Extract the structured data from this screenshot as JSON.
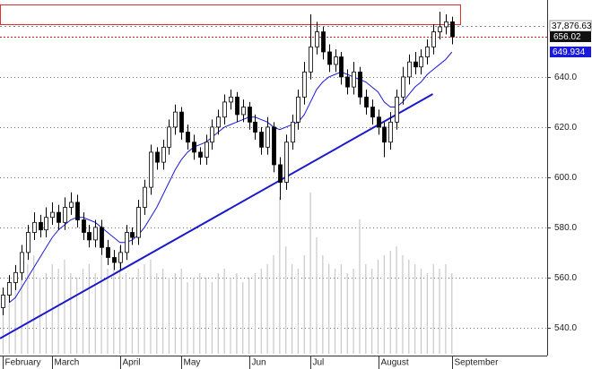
{
  "chart_data": {
    "type": "candlestick",
    "open": [
      548,
      553,
      558,
      562,
      570,
      578,
      582,
      579,
      584,
      586,
      582,
      588,
      590,
      583,
      578,
      575,
      580,
      572,
      568,
      566,
      570,
      578,
      576,
      588,
      596,
      610,
      606,
      612,
      620,
      626,
      618,
      614,
      610,
      608,
      614,
      620,
      624,
      630,
      632,
      625,
      628,
      622,
      618,
      612,
      620,
      605,
      598,
      614,
      622,
      632,
      642,
      652,
      658,
      650,
      645,
      648,
      640,
      636,
      642,
      632,
      628,
      624,
      620,
      614,
      622,
      632,
      640,
      646,
      644,
      648,
      652,
      658,
      660,
      662
    ],
    "high": [
      556,
      561,
      565,
      573,
      581,
      586,
      585,
      588,
      590,
      589,
      592,
      594,
      593,
      586,
      581,
      583,
      583,
      575,
      571,
      573,
      581,
      580,
      591,
      599,
      613,
      612,
      615,
      623,
      629,
      628,
      621,
      617,
      612,
      617,
      623,
      627,
      633,
      635,
      634,
      631,
      630,
      625,
      620,
      624,
      622,
      608,
      617,
      625,
      635,
      646,
      665,
      662,
      660,
      653,
      651,
      650,
      643,
      646,
      644,
      635,
      631,
      627,
      622,
      626,
      635,
      644,
      649,
      650,
      651,
      655,
      661,
      666,
      665,
      664
    ],
    "low": [
      545,
      550,
      555,
      559,
      567,
      575,
      576,
      576,
      581,
      579,
      579,
      585,
      580,
      575,
      572,
      572,
      569,
      565,
      563,
      563,
      567,
      573,
      573,
      585,
      593,
      603,
      603,
      609,
      617,
      615,
      611,
      607,
      605,
      605,
      611,
      617,
      621,
      627,
      622,
      622,
      619,
      615,
      609,
      609,
      602,
      591,
      595,
      611,
      619,
      629,
      639,
      649,
      647,
      642,
      642,
      637,
      633,
      633,
      629,
      625,
      621,
      617,
      608,
      611,
      619,
      629,
      637,
      641,
      641,
      645,
      649,
      655,
      657,
      653
    ],
    "close": [
      553,
      558,
      562,
      570,
      578,
      582,
      579,
      584,
      586,
      582,
      588,
      590,
      583,
      578,
      575,
      580,
      572,
      568,
      566,
      570,
      578,
      576,
      588,
      596,
      610,
      606,
      612,
      620,
      626,
      618,
      614,
      610,
      608,
      614,
      620,
      624,
      630,
      632,
      625,
      628,
      622,
      618,
      612,
      620,
      605,
      598,
      614,
      622,
      632,
      642,
      652,
      658,
      650,
      645,
      648,
      640,
      636,
      642,
      632,
      628,
      624,
      620,
      614,
      622,
      632,
      640,
      646,
      644,
      648,
      652,
      658,
      660,
      662,
      656.02
    ],
    "moving_average": [
      null,
      550,
      552,
      556,
      560,
      564,
      568,
      572,
      576,
      579,
      581,
      583,
      584,
      584,
      583,
      582,
      580,
      578,
      576,
      574,
      574,
      575,
      577,
      580,
      584,
      588,
      593,
      598,
      603,
      607,
      610,
      612,
      613,
      614,
      616,
      618,
      620,
      621,
      622,
      623,
      624,
      624,
      623,
      622,
      620,
      619,
      620,
      621,
      622,
      625,
      630,
      635,
      638,
      640,
      641,
      642,
      641,
      640,
      639,
      638,
      636,
      634,
      630,
      628,
      628,
      630,
      633,
      636,
      638,
      641,
      643,
      645,
      647,
      649.934
    ],
    "volume": [
      70,
      85,
      90,
      95,
      100,
      110,
      85,
      90,
      100,
      95,
      105,
      90,
      85,
      95,
      100,
      90,
      110,
      95,
      100,
      120,
      90,
      85,
      95,
      100,
      105,
      90,
      95,
      85,
      90,
      95,
      80,
      85,
      90,
      85,
      80,
      90,
      95,
      85,
      90,
      80,
      85,
      90,
      95,
      100,
      110,
      175,
      120,
      100,
      95,
      110,
      180,
      130,
      110,
      100,
      95,
      100,
      90,
      95,
      150,
      100,
      95,
      105,
      110,
      115,
      120,
      110,
      105,
      100,
      95,
      90,
      100,
      95,
      100,
      90
    ],
    "volume_lim": [
      0,
      200
    ],
    "trendline": {
      "x": [
        -0.5,
        69.9
      ],
      "y": [
        535.7,
        633.2
      ]
    },
    "annotations": [
      "37,876.63"
    ],
    "xlim": [
      -0.5,
      88.5
    ],
    "xticks": [
      {
        "value": 0,
        "label": "February"
      },
      {
        "value": 8,
        "label": "March"
      },
      {
        "value": 19,
        "label": "April"
      },
      {
        "value": 29,
        "label": "May"
      },
      {
        "value": 40,
        "label": "Jun"
      },
      {
        "value": 50,
        "label": "Jul"
      },
      {
        "value": 61,
        "label": "August"
      },
      {
        "value": 73,
        "label": "September"
      }
    ],
    "ylim": [
      529.6,
      670.7
    ],
    "yticks": [
      {
        "value": 540,
        "label": "540.0"
      },
      {
        "value": 560,
        "label": "560.0"
      },
      {
        "value": 580,
        "label": "580.0"
      },
      {
        "value": 600,
        "label": "600.0"
      },
      {
        "value": 620,
        "label": "620.0"
      },
      {
        "value": 640,
        "label": "640.0"
      }
    ],
    "grid": true,
    "up_color": "#ffffff",
    "down_color": "#000000",
    "ma_color": "#1a1adb",
    "trend_color": "#1a1acc",
    "volume_color": "#c8c8c8"
  }
}
